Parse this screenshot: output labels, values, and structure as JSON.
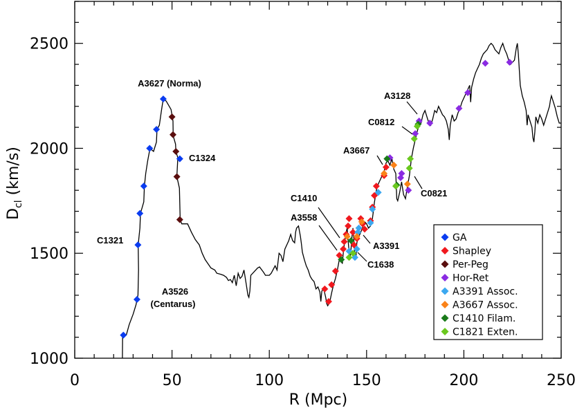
{
  "chart_data": {
    "type": "line",
    "xlabel": "R (Mpc)",
    "ylabel": "D",
    "ylabel_sub": "cl",
    "ylabel_unit": " (km/s)",
    "xlim": [
      0,
      250
    ],
    "ylim": [
      1000,
      2700
    ],
    "xticks": [
      0,
      50,
      100,
      150,
      200,
      250
    ],
    "yticks": [
      1000,
      1500,
      2000,
      2500
    ],
    "legend_position": "bottom-right",
    "profile": [
      [
        24.5,
        1000
      ],
      [
        24.6,
        1110
      ],
      [
        26.5,
        1110
      ],
      [
        28,
        1160
      ],
      [
        30,
        1210
      ],
      [
        31.5,
        1255
      ],
      [
        32,
        1280
      ],
      [
        32.5,
        1300
      ],
      [
        32.8,
        1420
      ],
      [
        32.6,
        1540
      ],
      [
        33.5,
        1620
      ],
      [
        33.8,
        1690
      ],
      [
        35.5,
        1745
      ],
      [
        35.8,
        1820
      ],
      [
        36.5,
        1880
      ],
      [
        37.5,
        1940
      ],
      [
        38.7,
        2000
      ],
      [
        40.5,
        1985
      ],
      [
        42,
        2030
      ],
      [
        42.3,
        2090
      ],
      [
        43.5,
        2110
      ],
      [
        44.5,
        2175
      ],
      [
        45.5,
        2235
      ],
      [
        47,
        2225
      ],
      [
        49.5,
        2185
      ],
      [
        50.5,
        2130
      ],
      [
        50.6,
        2060
      ],
      [
        51.8,
        2020
      ],
      [
        52,
        1985
      ],
      [
        53,
        1955
      ],
      [
        52.5,
        1865
      ],
      [
        53.8,
        1810
      ],
      [
        54.2,
        1660
      ],
      [
        55,
        1640
      ],
      [
        58,
        1640
      ],
      [
        60,
        1600
      ],
      [
        62,
        1565
      ],
      [
        64,
        1540
      ],
      [
        65.5,
        1500
      ],
      [
        67,
        1470
      ],
      [
        68.5,
        1450
      ],
      [
        70,
        1430
      ],
      [
        72,
        1420
      ],
      [
        73,
        1405
      ],
      [
        75,
        1400
      ],
      [
        76.5,
        1395
      ],
      [
        78,
        1385
      ],
      [
        79,
        1370
      ],
      [
        80,
        1375
      ],
      [
        81,
        1360
      ],
      [
        82,
        1395
      ],
      [
        83,
        1345
      ],
      [
        84,
        1405
      ],
      [
        85,
        1380
      ],
      [
        86,
        1390
      ],
      [
        87,
        1420
      ],
      [
        88,
        1360
      ],
      [
        89,
        1300
      ],
      [
        89.5,
        1290
      ],
      [
        90,
        1320
      ],
      [
        90.5,
        1395
      ],
      [
        92,
        1410
      ],
      [
        94,
        1430
      ],
      [
        95,
        1435
      ],
      [
        97,
        1410
      ],
      [
        98,
        1395
      ],
      [
        100,
        1395
      ],
      [
        101,
        1405
      ],
      [
        103,
        1440
      ],
      [
        104,
        1420
      ],
      [
        105,
        1500
      ],
      [
        106,
        1490
      ],
      [
        107,
        1460
      ],
      [
        108,
        1520
      ],
      [
        109,
        1540
      ],
      [
        110,
        1560
      ],
      [
        111,
        1590
      ],
      [
        112,
        1560
      ],
      [
        113,
        1550
      ],
      [
        113.5,
        1600
      ],
      [
        114,
        1620
      ],
      [
        115,
        1630
      ],
      [
        116,
        1580
      ],
      [
        116.5,
        1545
      ],
      [
        117,
        1505
      ],
      [
        118,
        1470
      ],
      [
        119,
        1440
      ],
      [
        120,
        1420
      ],
      [
        121,
        1390
      ],
      [
        122,
        1375
      ],
      [
        123,
        1365
      ],
      [
        124,
        1330
      ],
      [
        125,
        1340
      ],
      [
        126,
        1315
      ],
      [
        126.5,
        1270
      ],
      [
        127,
        1320
      ],
      [
        128,
        1330
      ],
      [
        129,
        1290
      ],
      [
        129.5,
        1260
      ],
      [
        130,
        1250
      ],
      [
        131,
        1265
      ],
      [
        132,
        1310
      ],
      [
        133,
        1350
      ],
      [
        134,
        1380
      ],
      [
        135,
        1420
      ],
      [
        136,
        1470
      ],
      [
        136.5,
        1490
      ],
      [
        137,
        1480
      ],
      [
        137.5,
        1450
      ],
      [
        138,
        1500
      ],
      [
        138.5,
        1540
      ],
      [
        139,
        1570
      ],
      [
        139.5,
        1600
      ],
      [
        140,
        1620
      ],
      [
        140.5,
        1560
      ],
      [
        141,
        1510
      ],
      [
        141.5,
        1470
      ],
      [
        142,
        1520
      ],
      [
        142.5,
        1580
      ],
      [
        143,
        1620
      ],
      [
        143.5,
        1560
      ],
      [
        144,
        1490
      ],
      [
        144.5,
        1470
      ],
      [
        145,
        1550
      ],
      [
        146,
        1580
      ],
      [
        147,
        1600
      ],
      [
        148,
        1625
      ],
      [
        149,
        1650
      ],
      [
        150,
        1640
      ],
      [
        151,
        1620
      ],
      [
        152,
        1630
      ],
      [
        153,
        1665
      ],
      [
        153.5,
        1700
      ],
      [
        154,
        1740
      ],
      [
        155,
        1800
      ],
      [
        156,
        1830
      ],
      [
        157,
        1850
      ],
      [
        158,
        1870
      ],
      [
        159,
        1890
      ],
      [
        160,
        1930
      ],
      [
        161,
        1940
      ],
      [
        162,
        1920
      ],
      [
        163,
        1950
      ],
      [
        164,
        1900
      ],
      [
        165,
        1880
      ],
      [
        165.5,
        1760
      ],
      [
        166,
        1750
      ],
      [
        167,
        1790
      ],
      [
        168,
        1840
      ],
      [
        169,
        1780
      ],
      [
        170,
        1760
      ],
      [
        171,
        1820
      ],
      [
        172,
        1870
      ],
      [
        173,
        1950
      ],
      [
        174,
        2000
      ],
      [
        175,
        2040
      ],
      [
        176,
        2080
      ],
      [
        177,
        2110
      ],
      [
        178,
        2120
      ],
      [
        179,
        2160
      ],
      [
        180,
        2180
      ],
      [
        181,
        2150
      ],
      [
        182,
        2120
      ],
      [
        183,
        2110
      ],
      [
        184,
        2140
      ],
      [
        185,
        2180
      ],
      [
        186,
        2170
      ],
      [
        187,
        2200
      ],
      [
        188,
        2180
      ],
      [
        189,
        2160
      ],
      [
        190,
        2150
      ],
      [
        191,
        2130
      ],
      [
        192,
        2090
      ],
      [
        192.5,
        2040
      ],
      [
        193,
        2110
      ],
      [
        194,
        2160
      ],
      [
        195,
        2130
      ],
      [
        196,
        2140
      ],
      [
        197,
        2170
      ],
      [
        198,
        2190
      ],
      [
        199,
        2220
      ],
      [
        200,
        2240
      ],
      [
        201,
        2260
      ],
      [
        202,
        2280
      ],
      [
        203,
        2300
      ],
      [
        203.5,
        2220
      ],
      [
        204,
        2290
      ],
      [
        205,
        2330
      ],
      [
        206,
        2360
      ],
      [
        207,
        2380
      ],
      [
        208,
        2400
      ],
      [
        209,
        2430
      ],
      [
        210,
        2450
      ],
      [
        211,
        2460
      ],
      [
        212,
        2470
      ],
      [
        213,
        2490
      ],
      [
        214,
        2500
      ],
      [
        215,
        2490
      ],
      [
        216,
        2470
      ],
      [
        217,
        2460
      ],
      [
        218,
        2450
      ],
      [
        219,
        2480
      ],
      [
        220,
        2500
      ],
      [
        221,
        2470
      ],
      [
        222,
        2450
      ],
      [
        223,
        2420
      ],
      [
        224,
        2400
      ],
      [
        225,
        2410
      ],
      [
        226,
        2420
      ],
      [
        227,
        2480
      ],
      [
        227.5,
        2500
      ],
      [
        228,
        2450
      ],
      [
        229,
        2300
      ],
      [
        230,
        2250
      ],
      [
        231,
        2220
      ],
      [
        232,
        2180
      ],
      [
        232.5,
        2110
      ],
      [
        233,
        2160
      ],
      [
        234,
        2130
      ],
      [
        235,
        2100
      ],
      [
        235.5,
        2050
      ],
      [
        236,
        2030
      ],
      [
        236.5,
        2080
      ],
      [
        237,
        2150
      ],
      [
        238,
        2120
      ],
      [
        239,
        2160
      ],
      [
        240,
        2140
      ],
      [
        241,
        2110
      ],
      [
        242,
        2140
      ],
      [
        243,
        2170
      ],
      [
        244,
        2200
      ],
      [
        244.5,
        2230
      ],
      [
        245,
        2250
      ],
      [
        246,
        2220
      ],
      [
        247,
        2190
      ],
      [
        248,
        2150
      ],
      [
        249,
        2120
      ],
      [
        250,
        2120
      ]
    ],
    "series": [
      {
        "name": "GA",
        "color": "#0a3cf0",
        "points": [
          [
            25,
            1110
          ],
          [
            32,
            1280
          ],
          [
            32.5,
            1540
          ],
          [
            33.5,
            1690
          ],
          [
            35.5,
            1820
          ],
          [
            38.5,
            2000
          ],
          [
            42,
            2090
          ],
          [
            45.5,
            2235
          ],
          [
            54,
            1950
          ]
        ]
      },
      {
        "name": "Shapley",
        "color": "#f0181e",
        "points": [
          [
            128.5,
            1330
          ],
          [
            130.5,
            1270
          ],
          [
            132,
            1350
          ],
          [
            134,
            1415
          ],
          [
            136,
            1490
          ],
          [
            138,
            1520
          ],
          [
            138.5,
            1555
          ],
          [
            139.5,
            1590
          ],
          [
            140.5,
            1630
          ],
          [
            141,
            1665
          ],
          [
            143,
            1600
          ],
          [
            143.5,
            1540
          ],
          [
            145,
            1570
          ],
          [
            147,
            1665
          ],
          [
            148,
            1640
          ],
          [
            149,
            1615
          ],
          [
            152,
            1655
          ],
          [
            153,
            1720
          ],
          [
            154,
            1775
          ],
          [
            155,
            1820
          ],
          [
            159,
            1870
          ],
          [
            160,
            1910
          ]
        ]
      },
      {
        "name": "Per-Peg",
        "color": "#5a0e0e",
        "points": [
          [
            50,
            2150
          ],
          [
            50.5,
            2065
          ],
          [
            52,
            1985
          ],
          [
            52.5,
            1865
          ],
          [
            54,
            1660
          ]
        ]
      },
      {
        "name": "Hor-Ret",
        "color": "#8a2be2",
        "points": [
          [
            162,
            1955
          ],
          [
            167.5,
            1860
          ],
          [
            168,
            1880
          ],
          [
            171.5,
            1800
          ],
          [
            175,
            2070
          ],
          [
            177,
            2130
          ],
          [
            182.5,
            2120
          ],
          [
            197.5,
            2190
          ],
          [
            202,
            2265
          ],
          [
            211,
            2405
          ],
          [
            223.5,
            2410
          ]
        ]
      },
      {
        "name": "A3391 Assoc.",
        "color": "#3ca8f0",
        "points": [
          [
            141,
            1510
          ],
          [
            144,
            1480
          ],
          [
            145,
            1520
          ],
          [
            145.5,
            1600
          ],
          [
            146,
            1620
          ],
          [
            152,
            1645
          ],
          [
            153,
            1710
          ],
          [
            156,
            1790
          ]
        ]
      },
      {
        "name": "A3667 Assoc.",
        "color": "#fa8218",
        "points": [
          [
            140,
            1580
          ],
          [
            145,
            1580
          ],
          [
            147.5,
            1650
          ],
          [
            159,
            1880
          ],
          [
            164,
            1920
          ],
          [
            171,
            1830
          ]
        ]
      },
      {
        "name": "C1410 Filam.",
        "color": "#1a7a1a",
        "points": [
          [
            137,
            1470
          ],
          [
            142,
            1560
          ],
          [
            160.5,
            1950
          ],
          [
            165.5,
            1825
          ],
          [
            176.5,
            2115
          ]
        ]
      },
      {
        "name": "C1821 Exten.",
        "color": "#6ac81e",
        "points": [
          [
            141,
            1480
          ],
          [
            143,
            1500
          ],
          [
            165,
            1820
          ],
          [
            172,
            1905
          ],
          [
            172.5,
            1950
          ],
          [
            174.5,
            2045
          ],
          [
            176,
            2105
          ]
        ]
      }
    ],
    "annotations": [
      {
        "text": "A3627 (Norma)"
      },
      {
        "text": "C1324"
      },
      {
        "text": "C1321"
      },
      {
        "text": "A3526"
      },
      {
        "text": "(Centarus)"
      },
      {
        "text": "A3128"
      },
      {
        "text": "C0812"
      },
      {
        "text": "A3667"
      },
      {
        "text": "C0821"
      },
      {
        "text": "C1410"
      },
      {
        "text": "A3558"
      },
      {
        "text": "A3391"
      },
      {
        "text": "C1638"
      }
    ]
  }
}
